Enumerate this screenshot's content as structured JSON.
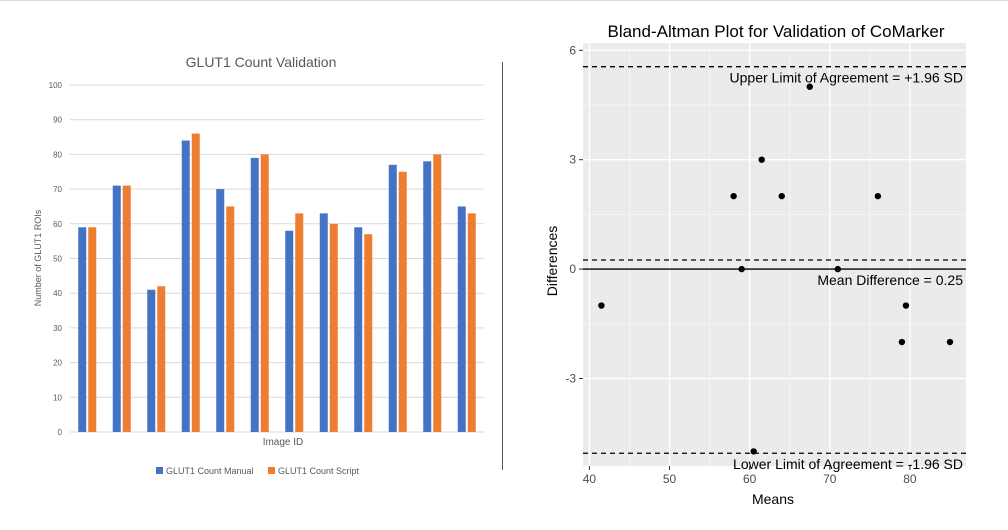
{
  "chart_data": [
    {
      "type": "bar",
      "title": "GLUT1 Count Validation",
      "xlabel": "Image ID",
      "ylabel": "Number of GLUT1 ROIs",
      "ylim": [
        0,
        100
      ],
      "y_ticks": [
        "0",
        "10",
        "20",
        "30",
        "40",
        "50",
        "60",
        "70",
        "80",
        "90",
        "100"
      ],
      "grid": true,
      "legend_position": "bottom",
      "series": [
        {
          "name": "GLUT1 Count Manual",
          "color": "#4472c4",
          "values": [
            59,
            71,
            41,
            84,
            70,
            79,
            58,
            63,
            59,
            77,
            78,
            65
          ]
        },
        {
          "name": "GLUT1 Count Script",
          "color": "#ed7d31",
          "values": [
            59,
            71,
            42,
            86,
            65,
            80,
            63,
            60,
            57,
            75,
            80,
            63
          ]
        }
      ]
    },
    {
      "type": "scatter",
      "title": "Bland-Altman Plot for Validation of CoMarker",
      "xlabel": "Means",
      "ylabel": "Differences",
      "xlim": [
        39.2,
        87
      ],
      "ylim": [
        -5.4,
        6.2
      ],
      "x_ticks": [
        "40",
        "50",
        "60",
        "70",
        "80"
      ],
      "y_ticks": [
        "-3",
        "0",
        "3",
        "6"
      ],
      "x_tick_values": [
        40,
        50,
        60,
        70,
        80
      ],
      "y_tick_values": [
        -3,
        0,
        3,
        6
      ],
      "grid": true,
      "background": "#ebebeb",
      "points": [
        {
          "x": 41.5,
          "y": -1
        },
        {
          "x": 58,
          "y": 2
        },
        {
          "x": 59,
          "y": 0
        },
        {
          "x": 60.5,
          "y": -5
        },
        {
          "x": 61.5,
          "y": 3
        },
        {
          "x": 64,
          "y": 2
        },
        {
          "x": 67.5,
          "y": 5
        },
        {
          "x": 71,
          "y": 0
        },
        {
          "x": 76,
          "y": 2
        },
        {
          "x": 79,
          "y": -2
        },
        {
          "x": 79.5,
          "y": -1
        },
        {
          "x": 85,
          "y": -2
        }
      ],
      "reference_lines": [
        {
          "y": 5.55,
          "style": "dashed",
          "label": "Upper Limit of Agreement = +1.96 SD"
        },
        {
          "y": 0.25,
          "style": "dashed",
          "label": ""
        },
        {
          "y": 0,
          "style": "solid",
          "label": "Mean Difference = 0.25"
        },
        {
          "y": -5.05,
          "style": "dashed",
          "label": "Lower Limit of Agreement = -1.96 SD"
        }
      ]
    }
  ]
}
